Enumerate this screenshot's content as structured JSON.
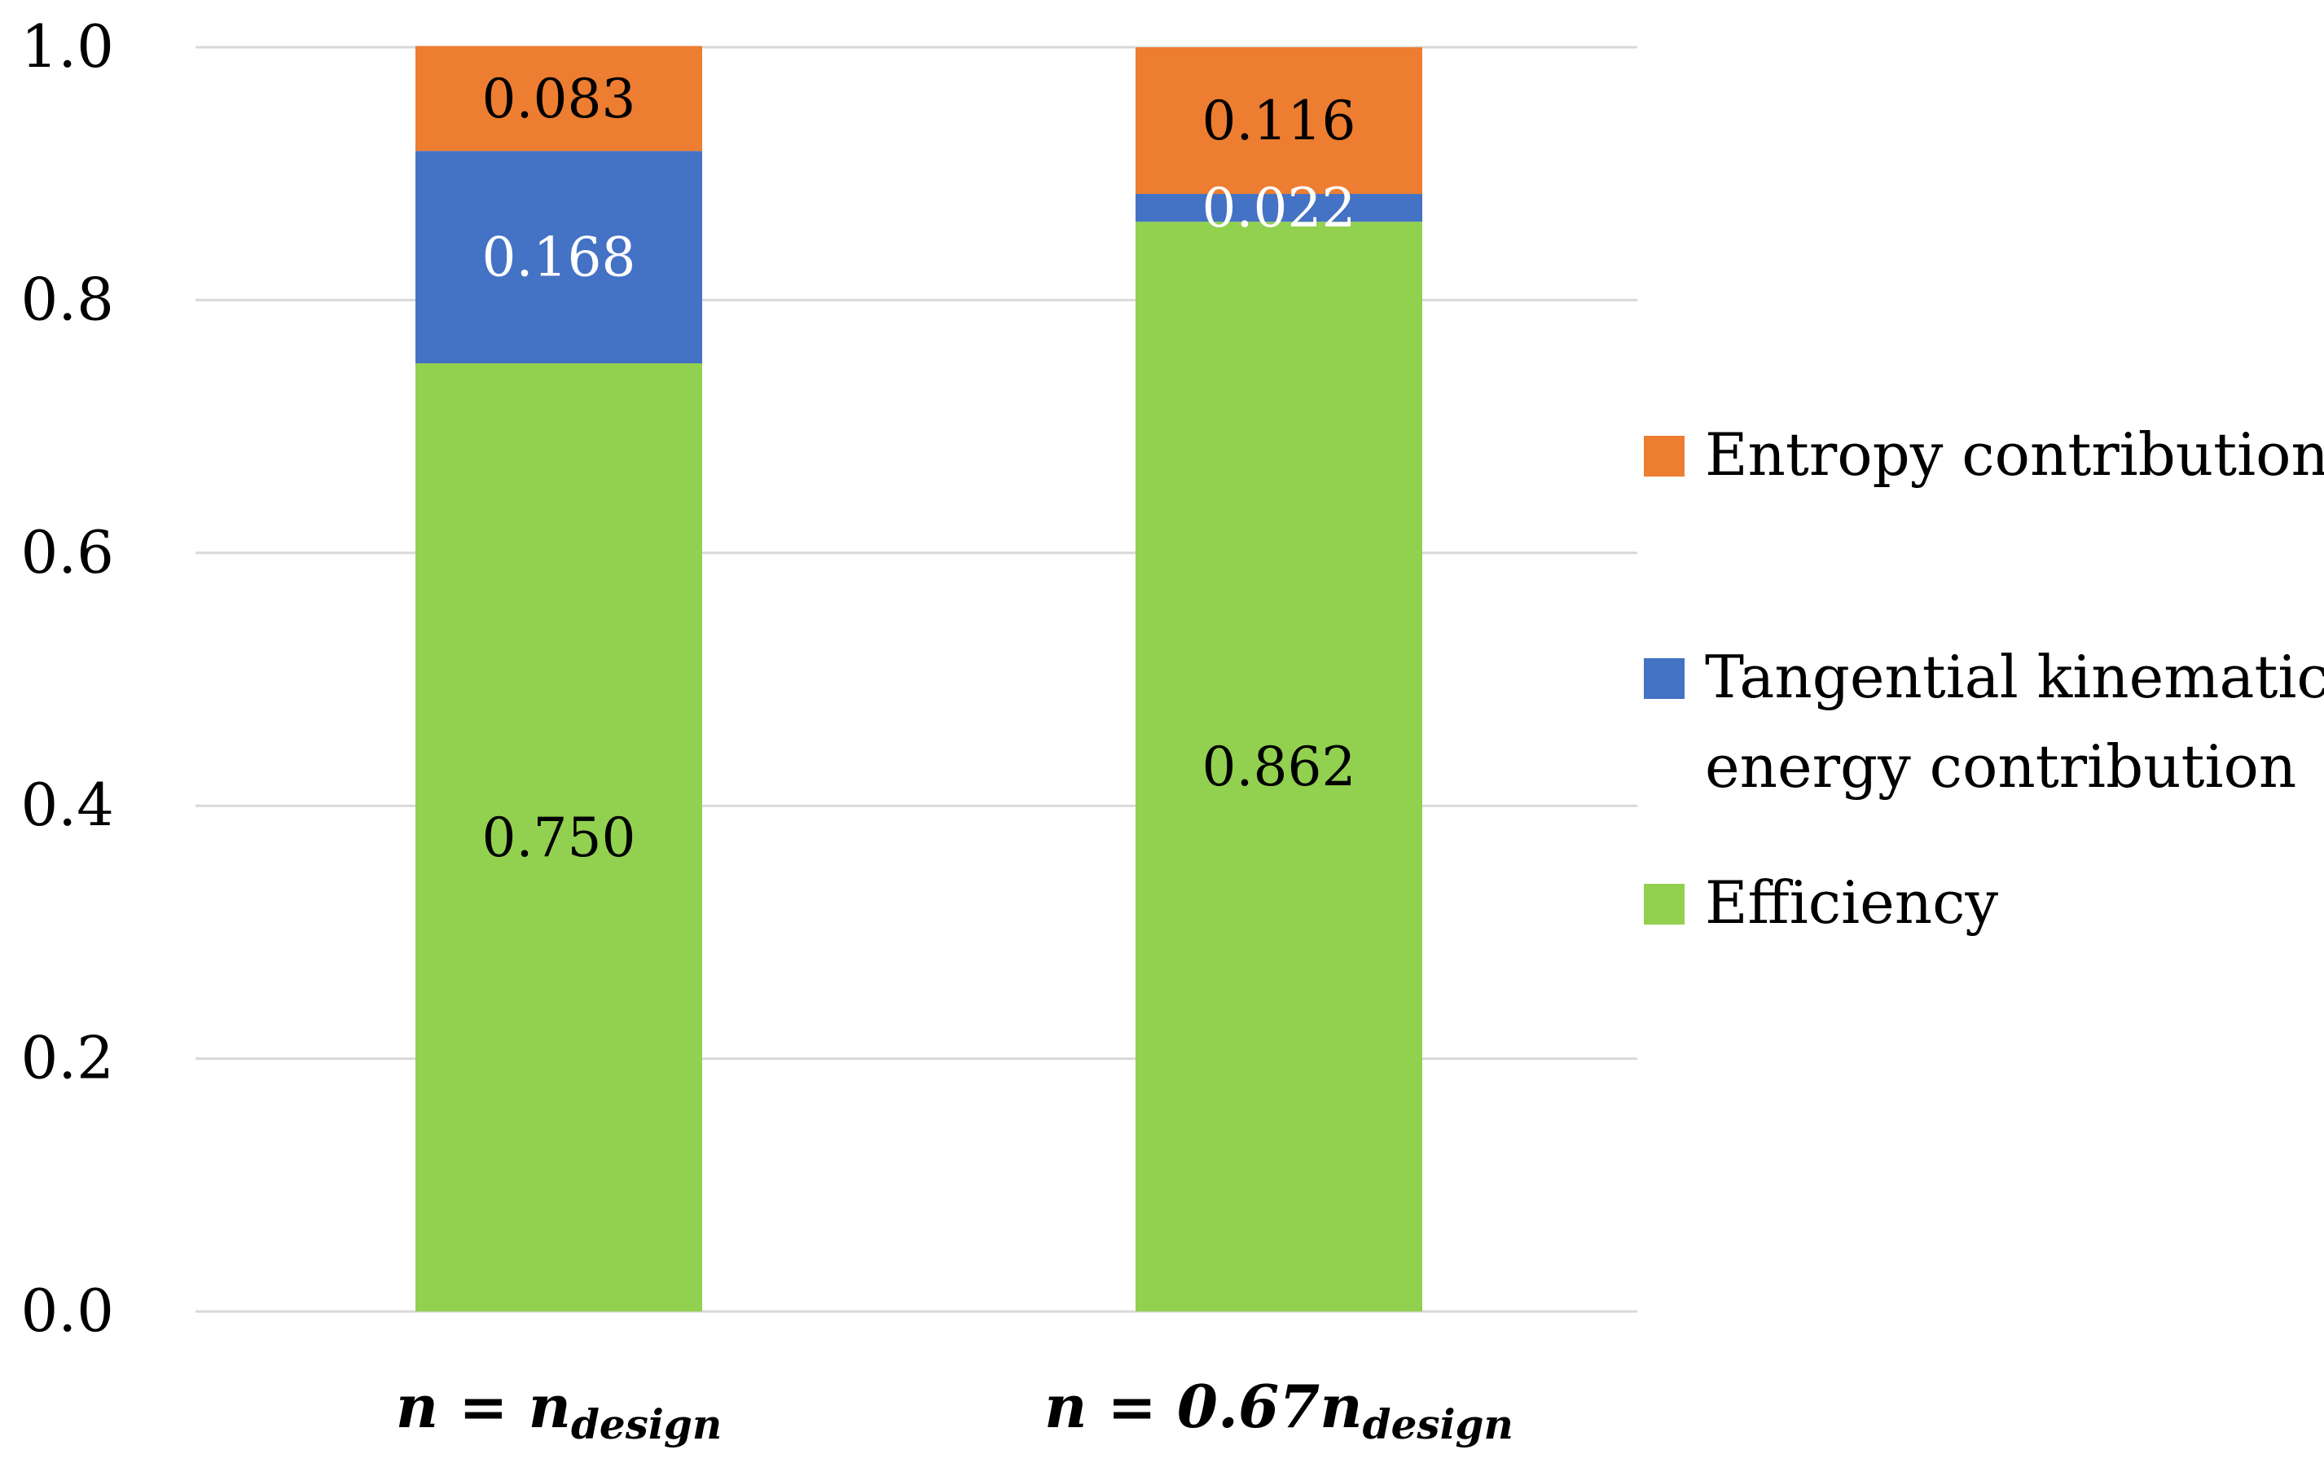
{
  "chart_data": {
    "type": "bar",
    "stacked": true,
    "title": "",
    "xlabel": "",
    "ylabel": "",
    "ylim": [
      0,
      1.0
    ],
    "yticks": [
      0.0,
      0.2,
      0.4,
      0.6,
      0.8,
      1.0
    ],
    "ytick_labels": [
      "0.0",
      "0.2",
      "0.4",
      "0.6",
      "0.8",
      "1.0"
    ],
    "grid": true,
    "legend_position": "right",
    "categories": [
      {
        "main": "n = n",
        "sub": "design"
      },
      {
        "main": "n = 0.67n",
        "sub": "design"
      }
    ],
    "series": [
      {
        "name": "Efficiency",
        "color": "#92d050",
        "label_color": "#000000",
        "values": [
          0.75,
          0.862
        ],
        "labels": [
          "0.750",
          "0.862"
        ]
      },
      {
        "name": "Tangential kinematic energy contribution",
        "color": "#4472c4",
        "label_color": "#ffffff",
        "values": [
          0.168,
          0.022
        ],
        "labels": [
          "0.168",
          "0.022"
        ]
      },
      {
        "name": "Entropy contribution",
        "color": "#ed7d31",
        "label_color": "#000000",
        "values": [
          0.083,
          0.116
        ],
        "labels": [
          "0.083",
          "0.116"
        ]
      }
    ],
    "legend": [
      {
        "lines": [
          "Entropy contribution"
        ],
        "color": "#ed7d31"
      },
      {
        "lines": [
          "Tangential kinematic",
          "energy contribution"
        ],
        "color": "#4472c4"
      },
      {
        "lines": [
          "Efficiency"
        ],
        "color": "#92d050"
      }
    ]
  }
}
